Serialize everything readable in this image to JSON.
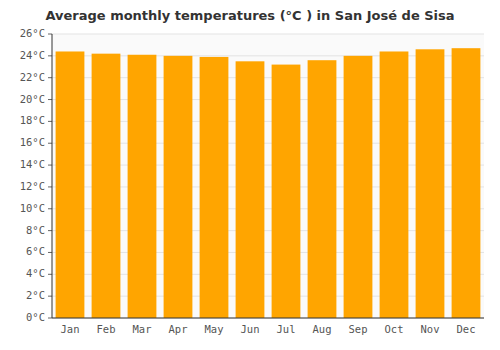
{
  "chart_data": {
    "type": "bar",
    "title": "Average monthly temperatures (°C ) in San José de Sisa",
    "categories": [
      "Jan",
      "Feb",
      "Mar",
      "Apr",
      "May",
      "Jun",
      "Jul",
      "Aug",
      "Sep",
      "Oct",
      "Nov",
      "Dec"
    ],
    "values": [
      24.4,
      24.2,
      24.1,
      24.0,
      23.9,
      23.5,
      23.2,
      23.6,
      24.0,
      24.4,
      24.6,
      24.7
    ],
    "color": "#FFA500",
    "ylim": [
      0,
      26
    ],
    "yticks": [
      {
        "value": 0,
        "label": "0°C"
      },
      {
        "value": 2,
        "label": "2°C"
      },
      {
        "value": 4,
        "label": "4°C"
      },
      {
        "value": 6,
        "label": "6°C"
      },
      {
        "value": 8,
        "label": "8°C"
      },
      {
        "value": 10,
        "label": "10°C"
      },
      {
        "value": 12,
        "label": "12°C"
      },
      {
        "value": 14,
        "label": "14°C"
      },
      {
        "value": 16,
        "label": "16°C"
      },
      {
        "value": 18,
        "label": "18°C"
      },
      {
        "value": 20,
        "label": "20°C"
      },
      {
        "value": 22,
        "label": "22°C"
      },
      {
        "value": 24,
        "label": "24°C"
      },
      {
        "value": 26,
        "label": "26°C"
      }
    ],
    "grid": true
  }
}
